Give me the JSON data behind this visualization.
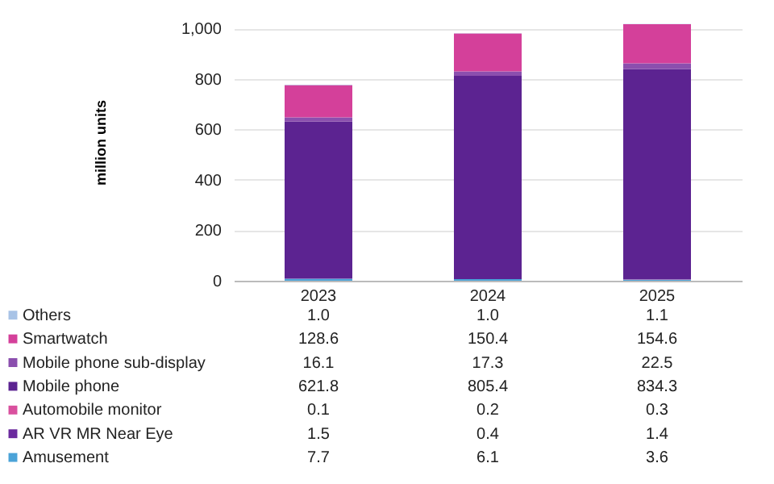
{
  "chart_data": {
    "type": "bar",
    "stacked": true,
    "ylabel": "million units",
    "categories": [
      "2023",
      "2024",
      "2025"
    ],
    "ylim": [
      0,
      1100
    ],
    "yticks": [
      0,
      200,
      400,
      600,
      800,
      {
        "value": 1000,
        "label": "1,000"
      }
    ],
    "grid": "y",
    "legend": "bottom",
    "series": [
      {
        "name": "Amusement",
        "color": "#4ba3d8",
        "values": [
          7.7,
          6.1,
          3.6
        ],
        "value_labels": [
          "7.7",
          "6.1",
          "3.6"
        ]
      },
      {
        "name": "AR VR MR Near Eye",
        "color": "#6b2a9e",
        "values": [
          1.5,
          0.4,
          1.4
        ],
        "value_labels": [
          "1.5",
          "0.4",
          "1.4"
        ]
      },
      {
        "name": "Automobile monitor",
        "color": "#d9509e",
        "values": [
          0.1,
          0.2,
          0.3
        ],
        "value_labels": [
          "0.1",
          "0.2",
          "0.3"
        ]
      },
      {
        "name": "Mobile phone",
        "color": "#5c2391",
        "values": [
          621.8,
          805.4,
          834.3
        ],
        "value_labels": [
          "621.8",
          "805.4",
          "834.3"
        ]
      },
      {
        "name": "Mobile phone sub-display",
        "color": "#8b4fae",
        "values": [
          16.1,
          17.3,
          22.5
        ],
        "value_labels": [
          "16.1",
          "17.3",
          "22.5"
        ]
      },
      {
        "name": "Smartwatch",
        "color": "#d4409a",
        "values": [
          128.6,
          150.4,
          154.6
        ],
        "value_labels": [
          "128.6",
          "150.4",
          "154.6"
        ]
      },
      {
        "name": "Others",
        "color": "#a8c3e6",
        "values": [
          1.0,
          1.0,
          1.1
        ],
        "value_labels": [
          "1.0",
          "1.0",
          "1.1"
        ]
      }
    ]
  }
}
